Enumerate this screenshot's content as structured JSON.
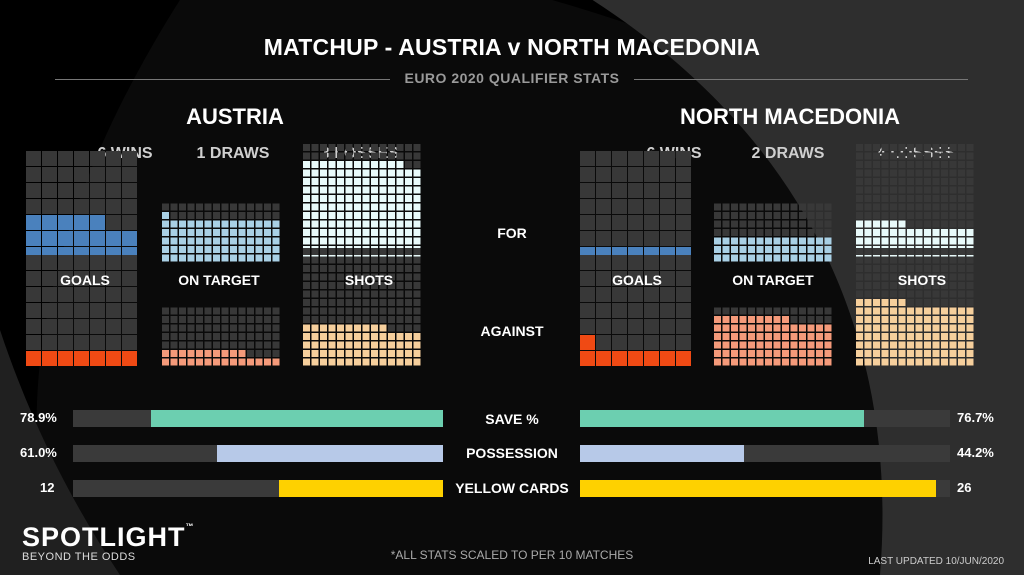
{
  "title": "MATCHUP - AUSTRIA v NORTH MACEDONIA",
  "subtitle": "EURO 2020 QUALIFIER STATS",
  "teams": [
    {
      "name": "AUSTRIA",
      "record": [
        "6 WINS",
        "1 DRAWS",
        "3 LOSSES"
      ],
      "save_pct_label": "78.9%",
      "possession_label": "61.0%",
      "yellow_label": "12"
    },
    {
      "name": "NORTH MACEDONIA",
      "record": [
        "6 WINS",
        "2 DRAWS",
        "4 LOSSES"
      ],
      "save_pct_label": "76.7%",
      "possession_label": "44.2%",
      "yellow_label": "26"
    }
  ],
  "labels": {
    "goals": "GOALS",
    "on_target": "ON TARGET",
    "shots": "SHOTS",
    "for": "FOR",
    "against": "AGAINST",
    "save_pct": "SAVE %",
    "possession": "POSSESSION",
    "yellow_cards": "YELLOW CARDS"
  },
  "footnote": "*ALL STATS SCALED TO PER 10 MATCHES",
  "updated": "LAST UPDATED 10/JUN/2020",
  "brand": {
    "name": "SPOTLIGHT",
    "tm": "™",
    "tagline": "BEYOND THE ODDS"
  },
  "colors": {
    "goals_for": "#4a81bd",
    "on_target_for": "#a9d0e5",
    "shots_for": "#e8fafa",
    "goals_against": "#f04a14",
    "on_target_against": "#f59a7a",
    "shots_against": "#f6cf9c",
    "empty": "#383838",
    "save": "#6ccfb0",
    "possession": "#b7c9e8",
    "yellow": "#fed100"
  },
  "chart_data": {
    "type": "waffle",
    "categories": [
      "GOALS",
      "ON TARGET",
      "SHOTS"
    ],
    "series": [
      {
        "name": "AUSTRIA",
        "for": [
          19,
          71,
          166
        ],
        "against": [
          7,
          24,
          66
        ]
      },
      {
        "name": "NORTH MACEDONIA",
        "for": [
          7,
          42,
          62
        ],
        "against": [
          8,
          79,
          104
        ]
      }
    ],
    "scale_max": [
      49,
      98,
      196
    ],
    "bars": [
      {
        "label": "SAVE %",
        "values": [
          78.9,
          76.7
        ],
        "max": 100
      },
      {
        "label": "POSSESSION",
        "values": [
          61.0,
          44.2
        ],
        "max": 100
      },
      {
        "label": "YELLOW CARDS",
        "values": [
          12,
          26
        ],
        "max": 27
      }
    ]
  }
}
